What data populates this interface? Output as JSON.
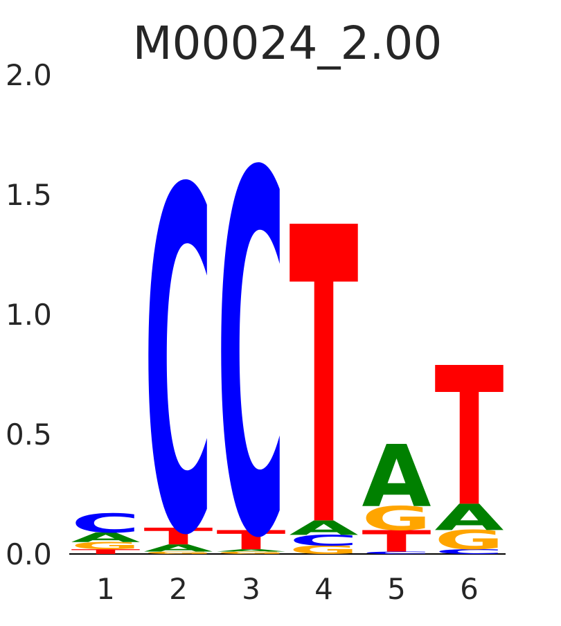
{
  "chart_data": {
    "type": "logo",
    "title": "M00024_2.00",
    "categories": [
      "1",
      "2",
      "3",
      "4",
      "5",
      "6"
    ],
    "colors": {
      "A": "#008000",
      "C": "#0000ff",
      "G": "#ffa500",
      "T": "#ff0000"
    },
    "stacks": [
      [
        {
          "letter": "T",
          "value": 0.02
        },
        {
          "letter": "G",
          "value": 0.03
        },
        {
          "letter": "A",
          "value": 0.04
        },
        {
          "letter": "C",
          "value": 0.08
        }
      ],
      [
        {
          "letter": "G",
          "value": 0.01
        },
        {
          "letter": "A",
          "value": 0.03
        },
        {
          "letter": "T",
          "value": 0.07
        },
        {
          "letter": "C",
          "value": 1.43
        }
      ],
      [
        {
          "letter": "G",
          "value": 0.01
        },
        {
          "letter": "A",
          "value": 0.01
        },
        {
          "letter": "T",
          "value": 0.08
        },
        {
          "letter": "C",
          "value": 1.51
        }
      ],
      [
        {
          "letter": "G",
          "value": 0.035
        },
        {
          "letter": "C",
          "value": 0.045
        },
        {
          "letter": "A",
          "value": 0.06
        },
        {
          "letter": "T",
          "value": 1.24
        }
      ],
      [
        {
          "letter": "C",
          "value": 0.01
        },
        {
          "letter": "T",
          "value": 0.09
        },
        {
          "letter": "G",
          "value": 0.1
        },
        {
          "letter": "A",
          "value": 0.26
        }
      ],
      [
        {
          "letter": "C",
          "value": 0.02
        },
        {
          "letter": "G",
          "value": 0.08
        },
        {
          "letter": "A",
          "value": 0.11
        },
        {
          "letter": "T",
          "value": 0.58
        }
      ]
    ],
    "ylim": [
      0,
      2
    ],
    "yticks": [
      {
        "value": 0,
        "label": "0.0"
      },
      {
        "value": 0.5,
        "label": "0.5"
      },
      {
        "value": 1,
        "label": "1.0"
      },
      {
        "value": 1.5,
        "label": "1.5"
      },
      {
        "value": 2,
        "label": "2.0"
      }
    ]
  }
}
